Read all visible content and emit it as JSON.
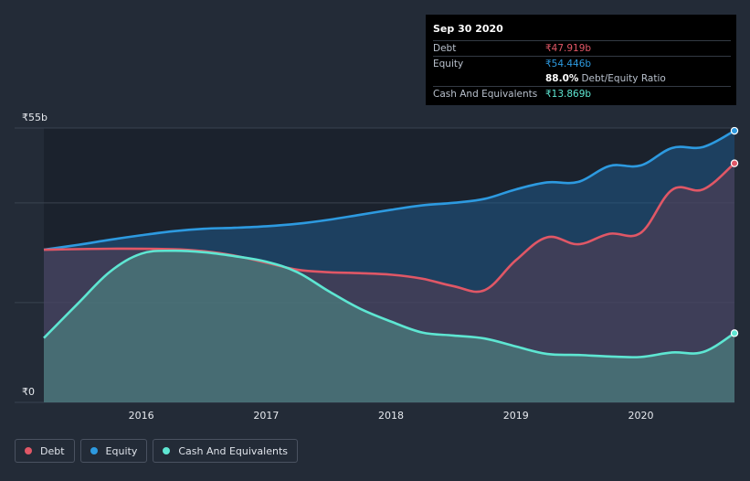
{
  "chart_data": {
    "type": "area",
    "currency_symbol": "₹",
    "ylim": [
      0,
      55
    ],
    "y_ticks": [
      {
        "value": 55,
        "label": "₹55b"
      },
      {
        "value": 0,
        "label": "₹0"
      }
    ],
    "x_domain": [
      2015.22,
      2020.75
    ],
    "x_ticks": [
      {
        "value": 2016,
        "label": "2016"
      },
      {
        "value": 2017,
        "label": "2017"
      },
      {
        "value": 2018,
        "label": "2018"
      },
      {
        "value": 2019,
        "label": "2019"
      },
      {
        "value": 2020,
        "label": "2020"
      }
    ],
    "series": [
      {
        "name": "Debt",
        "key": "debt",
        "color": "#e05766",
        "points": [
          [
            2015.22,
            30.6
          ],
          [
            2015.75,
            30.8
          ],
          [
            2016.25,
            30.7
          ],
          [
            2016.5,
            30.3
          ],
          [
            2016.75,
            29.4
          ],
          [
            2017,
            28.0
          ],
          [
            2017.25,
            26.6
          ],
          [
            2017.5,
            26.1
          ],
          [
            2017.75,
            25.9
          ],
          [
            2018,
            25.6
          ],
          [
            2018.25,
            24.8
          ],
          [
            2018.5,
            23.3
          ],
          [
            2018.75,
            22.5
          ],
          [
            2019.0,
            28.5
          ],
          [
            2019.25,
            33.1
          ],
          [
            2019.5,
            31.7
          ],
          [
            2019.75,
            33.8
          ],
          [
            2020.0,
            34.0
          ],
          [
            2020.25,
            42.6
          ],
          [
            2020.5,
            42.7
          ],
          [
            2020.75,
            47.919
          ]
        ]
      },
      {
        "name": "Equity",
        "key": "equity",
        "color": "#2d9ae0",
        "points": [
          [
            2015.22,
            30.6
          ],
          [
            2015.5,
            31.6
          ],
          [
            2015.75,
            32.6
          ],
          [
            2016.0,
            33.5
          ],
          [
            2016.25,
            34.3
          ],
          [
            2016.5,
            34.8
          ],
          [
            2016.75,
            35.0
          ],
          [
            2017.0,
            35.3
          ],
          [
            2017.25,
            35.8
          ],
          [
            2017.5,
            36.6
          ],
          [
            2017.75,
            37.6
          ],
          [
            2018.0,
            38.6
          ],
          [
            2018.25,
            39.5
          ],
          [
            2018.5,
            40.0
          ],
          [
            2018.75,
            40.8
          ],
          [
            2019.0,
            42.7
          ],
          [
            2019.25,
            44.1
          ],
          [
            2019.5,
            44.2
          ],
          [
            2019.75,
            47.4
          ],
          [
            2020.0,
            47.5
          ],
          [
            2020.25,
            51.0
          ],
          [
            2020.5,
            51.2
          ],
          [
            2020.75,
            54.446
          ]
        ]
      },
      {
        "name": "Cash And Equivalents",
        "key": "cash",
        "color": "#5ee6d2",
        "points": [
          [
            2015.22,
            12.9
          ],
          [
            2015.5,
            20.0
          ],
          [
            2015.75,
            26.2
          ],
          [
            2016.0,
            29.8
          ],
          [
            2016.25,
            30.4
          ],
          [
            2016.5,
            30.1
          ],
          [
            2016.75,
            29.3
          ],
          [
            2017.0,
            28.2
          ],
          [
            2017.25,
            26.1
          ],
          [
            2017.5,
            22.3
          ],
          [
            2017.75,
            18.8
          ],
          [
            2018.0,
            16.2
          ],
          [
            2018.25,
            14.0
          ],
          [
            2018.5,
            13.4
          ],
          [
            2018.75,
            12.8
          ],
          [
            2019.0,
            11.2
          ],
          [
            2019.25,
            9.7
          ],
          [
            2019.5,
            9.5
          ],
          [
            2019.75,
            9.2
          ],
          [
            2020.0,
            9.1
          ],
          [
            2020.25,
            10.0
          ],
          [
            2020.5,
            10.1
          ],
          [
            2020.75,
            13.869
          ]
        ]
      }
    ]
  },
  "tooltip": {
    "date": "Sep 30 2020",
    "debt_label": "Debt",
    "debt_value": "₹47.919b",
    "equity_label": "Equity",
    "equity_value": "₹54.446b",
    "ratio_pct": "88.0%",
    "ratio_label": "Debt/Equity Ratio",
    "cash_label": "Cash And Equivalents",
    "cash_value": "₹13.869b"
  },
  "legend": {
    "debt": "Debt",
    "equity": "Equity",
    "cash": "Cash And Equivalents"
  },
  "colors": {
    "background": "#232b37",
    "plot_background": "#1b222d",
    "debt": "#e05766",
    "equity": "#2d9ae0",
    "cash": "#5ee6d2"
  }
}
